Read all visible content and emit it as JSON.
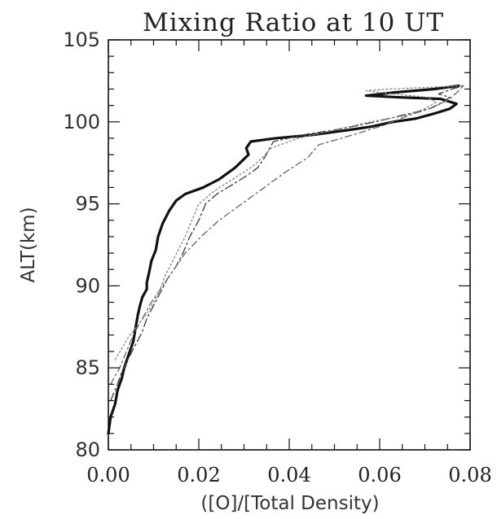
{
  "chart_data": {
    "type": "line",
    "title": "Mixing Ratio at 10 UT",
    "xlabel": "([O]/[Total Density)",
    "ylabel": "ALT(km)",
    "xlim": [
      0.0,
      0.08
    ],
    "ylim": [
      80,
      105
    ],
    "x_ticks": [
      0.0,
      0.02,
      0.04,
      0.06,
      0.08
    ],
    "x_tick_labels": [
      "0.00",
      "0.02",
      "0.04",
      "0.06",
      "0.08"
    ],
    "y_ticks": [
      80,
      85,
      90,
      95,
      100,
      105
    ],
    "y_tick_labels": [
      "80",
      "85",
      "90",
      "95",
      "100",
      "105"
    ],
    "grid": false,
    "legend": "none",
    "series": [
      {
        "style": "solid-thick",
        "color": "#111111",
        "points": [
          [
            0.0,
            81.0
          ],
          [
            0.0005,
            82.0
          ],
          [
            0.0015,
            82.8
          ],
          [
            0.002,
            83.6
          ],
          [
            0.003,
            84.4
          ],
          [
            0.0035,
            85.0
          ],
          [
            0.0045,
            85.8
          ],
          [
            0.0055,
            86.6
          ],
          [
            0.006,
            87.4
          ],
          [
            0.0065,
            88.2
          ],
          [
            0.007,
            88.8
          ],
          [
            0.0075,
            89.3
          ],
          [
            0.0085,
            89.8
          ],
          [
            0.0085,
            90.2
          ],
          [
            0.009,
            90.8
          ],
          [
            0.0095,
            91.5
          ],
          [
            0.0105,
            92.2
          ],
          [
            0.011,
            93.0
          ],
          [
            0.012,
            93.8
          ],
          [
            0.0135,
            94.6
          ],
          [
            0.015,
            95.2
          ],
          [
            0.017,
            95.6
          ],
          [
            0.021,
            96.0
          ],
          [
            0.0245,
            96.5
          ],
          [
            0.0265,
            96.9
          ],
          [
            0.028,
            97.2
          ],
          [
            0.0295,
            97.6
          ],
          [
            0.031,
            98.0
          ],
          [
            0.0305,
            98.4
          ],
          [
            0.0315,
            98.8
          ],
          [
            0.037,
            99.0
          ],
          [
            0.045,
            99.2
          ],
          [
            0.053,
            99.5
          ],
          [
            0.058,
            99.7
          ],
          [
            0.063,
            100.0
          ],
          [
            0.068,
            100.2
          ],
          [
            0.072,
            100.5
          ],
          [
            0.0755,
            100.8
          ],
          [
            0.077,
            101.1
          ],
          [
            0.0735,
            101.4
          ],
          [
            0.064,
            101.5
          ],
          [
            0.057,
            101.6
          ],
          [
            0.0635,
            101.8
          ],
          [
            0.072,
            102.0
          ],
          [
            0.0775,
            102.2
          ]
        ]
      },
      {
        "style": "dash-dot",
        "color": "#444444",
        "points": [
          [
            0.0005,
            83.0
          ],
          [
            0.002,
            84.0
          ],
          [
            0.003,
            84.8
          ],
          [
            0.0045,
            85.6
          ],
          [
            0.006,
            86.4
          ],
          [
            0.0075,
            87.2
          ],
          [
            0.0085,
            88.0
          ],
          [
            0.01,
            88.8
          ],
          [
            0.0115,
            89.6
          ],
          [
            0.013,
            90.4
          ],
          [
            0.015,
            91.2
          ],
          [
            0.0165,
            92.0
          ],
          [
            0.018,
            93.0
          ],
          [
            0.02,
            94.0
          ],
          [
            0.0215,
            95.0
          ],
          [
            0.024,
            95.6
          ],
          [
            0.027,
            96.1
          ],
          [
            0.0305,
            96.7
          ],
          [
            0.033,
            97.2
          ],
          [
            0.0345,
            97.8
          ],
          [
            0.0355,
            98.3
          ],
          [
            0.0365,
            98.8
          ],
          [
            0.043,
            99.2
          ],
          [
            0.052,
            99.6
          ],
          [
            0.059,
            100.0
          ],
          [
            0.065,
            100.4
          ],
          [
            0.071,
            100.8
          ],
          [
            0.074,
            101.2
          ],
          [
            0.0755,
            101.5
          ],
          [
            0.073,
            101.7
          ],
          [
            0.076,
            102.0
          ],
          [
            0.0785,
            102.2
          ]
        ]
      },
      {
        "style": "dash-dot-light",
        "color": "#666666",
        "points": [
          [
            0.0005,
            84.0
          ],
          [
            0.0025,
            85.0
          ],
          [
            0.004,
            86.0
          ],
          [
            0.0055,
            87.0
          ],
          [
            0.0075,
            88.0
          ],
          [
            0.0095,
            89.0
          ],
          [
            0.012,
            90.0
          ],
          [
            0.0145,
            91.0
          ],
          [
            0.017,
            92.0
          ],
          [
            0.0205,
            93.0
          ],
          [
            0.0245,
            94.0
          ],
          [
            0.0295,
            95.0
          ],
          [
            0.0345,
            96.0
          ],
          [
            0.0395,
            97.0
          ],
          [
            0.044,
            97.8
          ],
          [
            0.0465,
            98.6
          ],
          [
            0.054,
            99.2
          ],
          [
            0.061,
            99.8
          ],
          [
            0.0665,
            100.4
          ],
          [
            0.072,
            100.9
          ],
          [
            0.0755,
            101.4
          ],
          [
            0.0775,
            101.9
          ],
          [
            0.0785,
            102.2
          ]
        ]
      },
      {
        "style": "dotted",
        "color": "#888888",
        "points": [
          [
            0.0015,
            85.5
          ],
          [
            0.003,
            86.2
          ],
          [
            0.0045,
            86.9
          ],
          [
            0.0065,
            87.6
          ],
          [
            0.0085,
            88.3
          ],
          [
            0.01,
            89.0
          ],
          [
            0.0115,
            89.8
          ],
          [
            0.0125,
            90.6
          ],
          [
            0.014,
            91.4
          ],
          [
            0.0155,
            92.2
          ],
          [
            0.017,
            93.0
          ],
          [
            0.0185,
            94.0
          ],
          [
            0.02,
            95.0
          ],
          [
            0.0235,
            95.8
          ],
          [
            0.0275,
            96.5
          ],
          [
            0.0315,
            97.2
          ],
          [
            0.034,
            97.8
          ],
          [
            0.036,
            98.4
          ],
          [
            0.042,
            99.0
          ],
          [
            0.05,
            99.5
          ],
          [
            0.058,
            100.0
          ],
          [
            0.066,
            100.4
          ],
          [
            0.07,
            100.8
          ],
          [
            0.0725,
            101.2
          ],
          [
            0.0705,
            101.5
          ],
          [
            0.063,
            101.7
          ],
          [
            0.057,
            101.9
          ],
          [
            0.062,
            102.0
          ],
          [
            0.0705,
            102.1
          ],
          [
            0.0785,
            102.2
          ]
        ]
      }
    ]
  }
}
